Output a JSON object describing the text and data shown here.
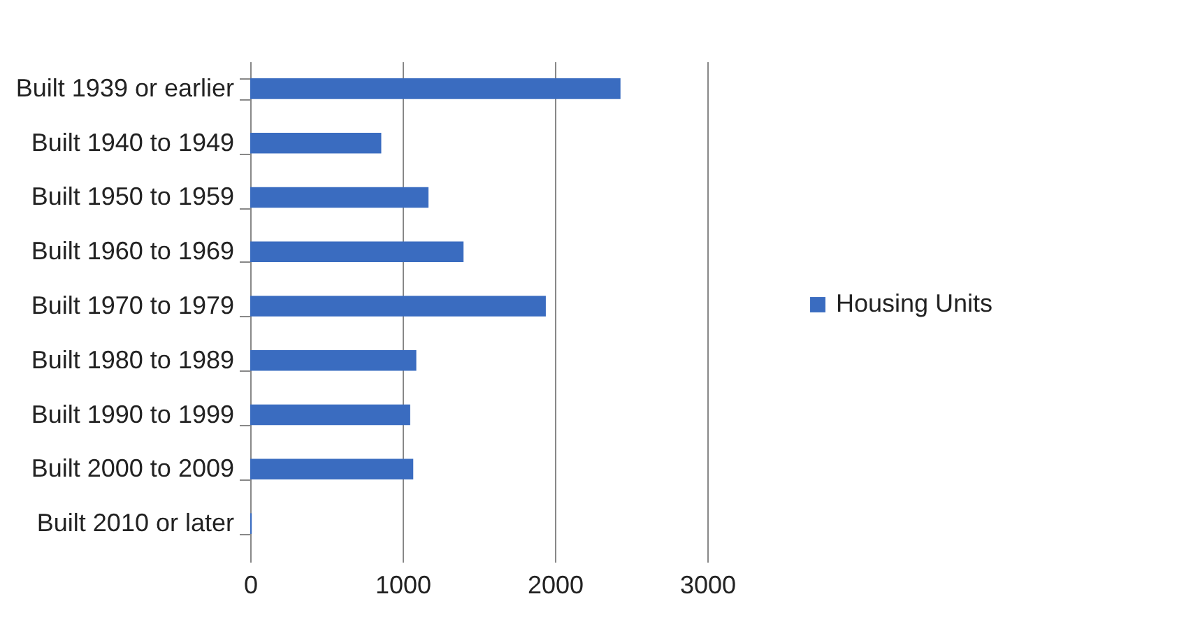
{
  "chart_data": {
    "type": "bar",
    "orientation": "horizontal",
    "categories": [
      "Built 1939 or earlier",
      "Built 1940 to 1949",
      "Built 1950 to 1959",
      "Built 1960 to 1969",
      "Built 1970 to 1979",
      "Built 1980 to 1989",
      "Built 1990 to 1999",
      "Built 2000 to 2009",
      "Built 2010 or later"
    ],
    "series": [
      {
        "name": "Housing Units",
        "color": "#3a6cc0",
        "values": [
          2430,
          860,
          1170,
          1400,
          1940,
          1090,
          1050,
          1070,
          10
        ]
      }
    ],
    "xlim": [
      0,
      3000
    ],
    "xticks": [
      0,
      1000,
      2000,
      3000
    ],
    "grid": "x",
    "legend": "right"
  }
}
